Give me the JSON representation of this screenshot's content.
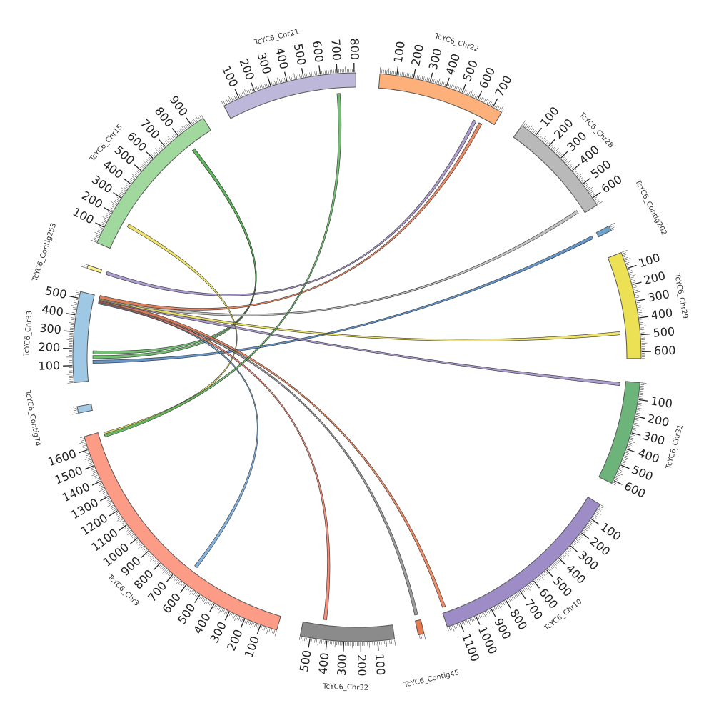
{
  "chart_data": {
    "type": "chord",
    "title": "",
    "segments": [
      {
        "name": "TcYC6_Chr33",
        "length": 540,
        "color": "#9fc8e4",
        "tick_step": 100
      },
      {
        "name": "TcYC6_Contig253",
        "length": 20,
        "color": "#fdf28b",
        "tick_step": 0
      },
      {
        "name": "TcYC6_Chr15",
        "length": 980,
        "color": "#a0d89e",
        "tick_step": 100
      },
      {
        "name": "TcYC6_Chr21",
        "length": 810,
        "color": "#bdb8d9",
        "tick_step": 100
      },
      {
        "name": "TcYC6_Chr22",
        "length": 760,
        "color": "#fdb07a",
        "tick_step": 100
      },
      {
        "name": "TcYC6_Chr28",
        "length": 650,
        "color": "#b9b9b9",
        "tick_step": 100
      },
      {
        "name": "TcYC6_Contig202",
        "length": 30,
        "color": "#6ba3cf",
        "tick_step": 0
      },
      {
        "name": "TcYC6_Chr29",
        "length": 640,
        "color": "#ece054",
        "tick_step": 100
      },
      {
        "name": "TcYC6_Chr31",
        "length": 620,
        "color": "#6db47b",
        "tick_step": 100
      },
      {
        "name": "TcYC6_Chr10",
        "length": 1180,
        "color": "#9d8cc5",
        "tick_step": 100
      },
      {
        "name": "TcYC6_Contig45",
        "length": 35,
        "color": "#e8784d",
        "tick_step": 0
      },
      {
        "name": "TcYC6_Chr32",
        "length": 560,
        "color": "#8b8b8b",
        "tick_step": 100
      },
      {
        "name": "TcYC6_Chr3",
        "length": 1680,
        "color": "#fc9b86",
        "tick_step": 100
      },
      {
        "name": "TcYC6_Contig74",
        "length": 40,
        "color": "#a3c9e5",
        "tick_step": 0
      }
    ],
    "links": [
      {
        "from": [
          "TcYC6_Chr33",
          120
        ],
        "to": [
          "TcYC6_Contig202",
          15
        ],
        "color": "#4a82c0"
      },
      {
        "from": [
          "TcYC6_Chr33",
          150
        ],
        "to": [
          "TcYC6_Chr15",
          820
        ],
        "color": "#5cb35c"
      },
      {
        "from": [
          "TcYC6_Chr33",
          180
        ],
        "to": [
          "TcYC6_Chr15",
          820
        ],
        "color": "#5cb35c"
      },
      {
        "from": [
          "TcYC6_Chr33",
          500
        ],
        "to": [
          "TcYC6_Chr3",
          620
        ],
        "color": "#6ba3d6"
      },
      {
        "from": [
          "TcYC6_Chr33",
          505
        ],
        "to": [
          "TcYC6_Chr32",
          425
        ],
        "color": "#f07a62"
      },
      {
        "from": [
          "TcYC6_Chr33",
          510
        ],
        "to": [
          "TcYC6_Contig45",
          20
        ],
        "color": "#8b8b8b"
      },
      {
        "from": [
          "TcYC6_Chr33",
          515
        ],
        "to": [
          "TcYC6_Chr10",
          1160
        ],
        "color": "#e8784d"
      },
      {
        "from": [
          "TcYC6_Chr33",
          520
        ],
        "to": [
          "TcYC6_Chr31",
          20
        ],
        "color": "#9d8cc5"
      },
      {
        "from": [
          "TcYC6_Chr33",
          525
        ],
        "to": [
          "TcYC6_Chr29",
          480
        ],
        "color": "#ece054"
      },
      {
        "from": [
          "TcYC6_Chr33",
          530
        ],
        "to": [
          "TcYC6_Chr28",
          620
        ],
        "color": "#b9b9b9"
      },
      {
        "from": [
          "TcYC6_Chr33",
          535
        ],
        "to": [
          "TcYC6_Chr22",
          680
        ],
        "color": "#e8784d"
      },
      {
        "from": [
          "TcYC6_Contig253",
          10
        ],
        "to": [
          "TcYC6_Chr22",
          640
        ],
        "color": "#9d8cc5"
      },
      {
        "from": [
          "TcYC6_Chr15",
          180
        ],
        "to": [
          "TcYC6_Chr3",
          1660
        ],
        "color": "#ece054"
      },
      {
        "from": [
          "TcYC6_Chr3",
          1650
        ],
        "to": [
          "TcYC6_Chr21",
          700
        ],
        "color": "#5cb35c"
      }
    ]
  }
}
